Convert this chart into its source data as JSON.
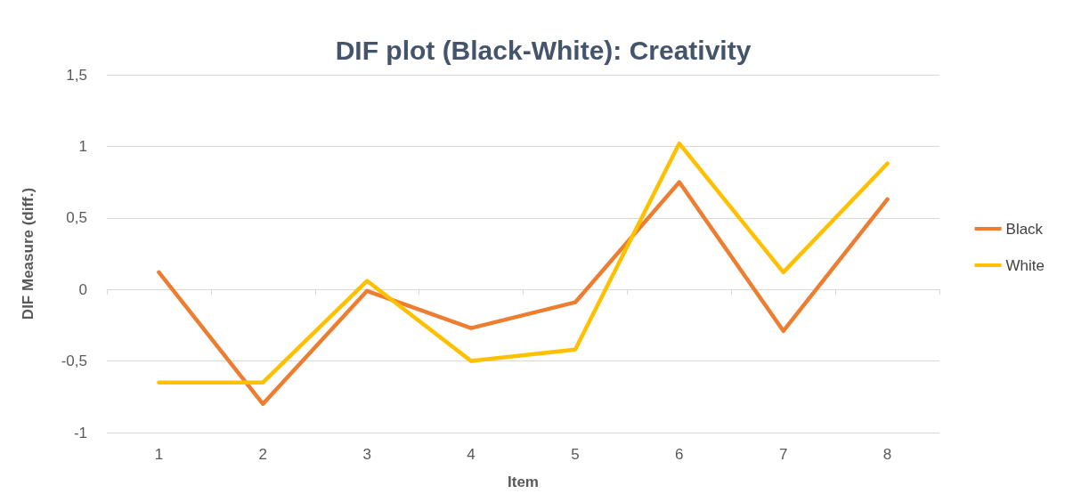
{
  "chart_data": {
    "type": "line",
    "title": "DIF plot (Black-White): Creativity",
    "xlabel": "Item",
    "ylabel": "DIF Measure (diff.)",
    "categories": [
      "1",
      "2",
      "3",
      "4",
      "5",
      "6",
      "7",
      "8"
    ],
    "series": [
      {
        "name": "Black",
        "color": "#ed7d31",
        "values": [
          0.12,
          -0.8,
          -0.01,
          -0.27,
          -0.09,
          0.75,
          -0.29,
          0.63
        ]
      },
      {
        "name": "White",
        "color": "#ffc000",
        "values": [
          -0.65,
          -0.65,
          0.06,
          -0.5,
          -0.42,
          1.02,
          0.12,
          0.88
        ]
      }
    ],
    "ylim": [
      -1,
      1.5
    ],
    "yticks": [
      {
        "value": -1,
        "label": "-1"
      },
      {
        "value": -0.5,
        "label": "-0,5"
      },
      {
        "value": 0,
        "label": "0"
      },
      {
        "value": 0.5,
        "label": "0,5"
      },
      {
        "value": 1,
        "label": "1"
      },
      {
        "value": 1.5,
        "label": "1,5"
      }
    ],
    "grid": "y",
    "legend": "right",
    "marker": "none",
    "line_style": "solid"
  }
}
